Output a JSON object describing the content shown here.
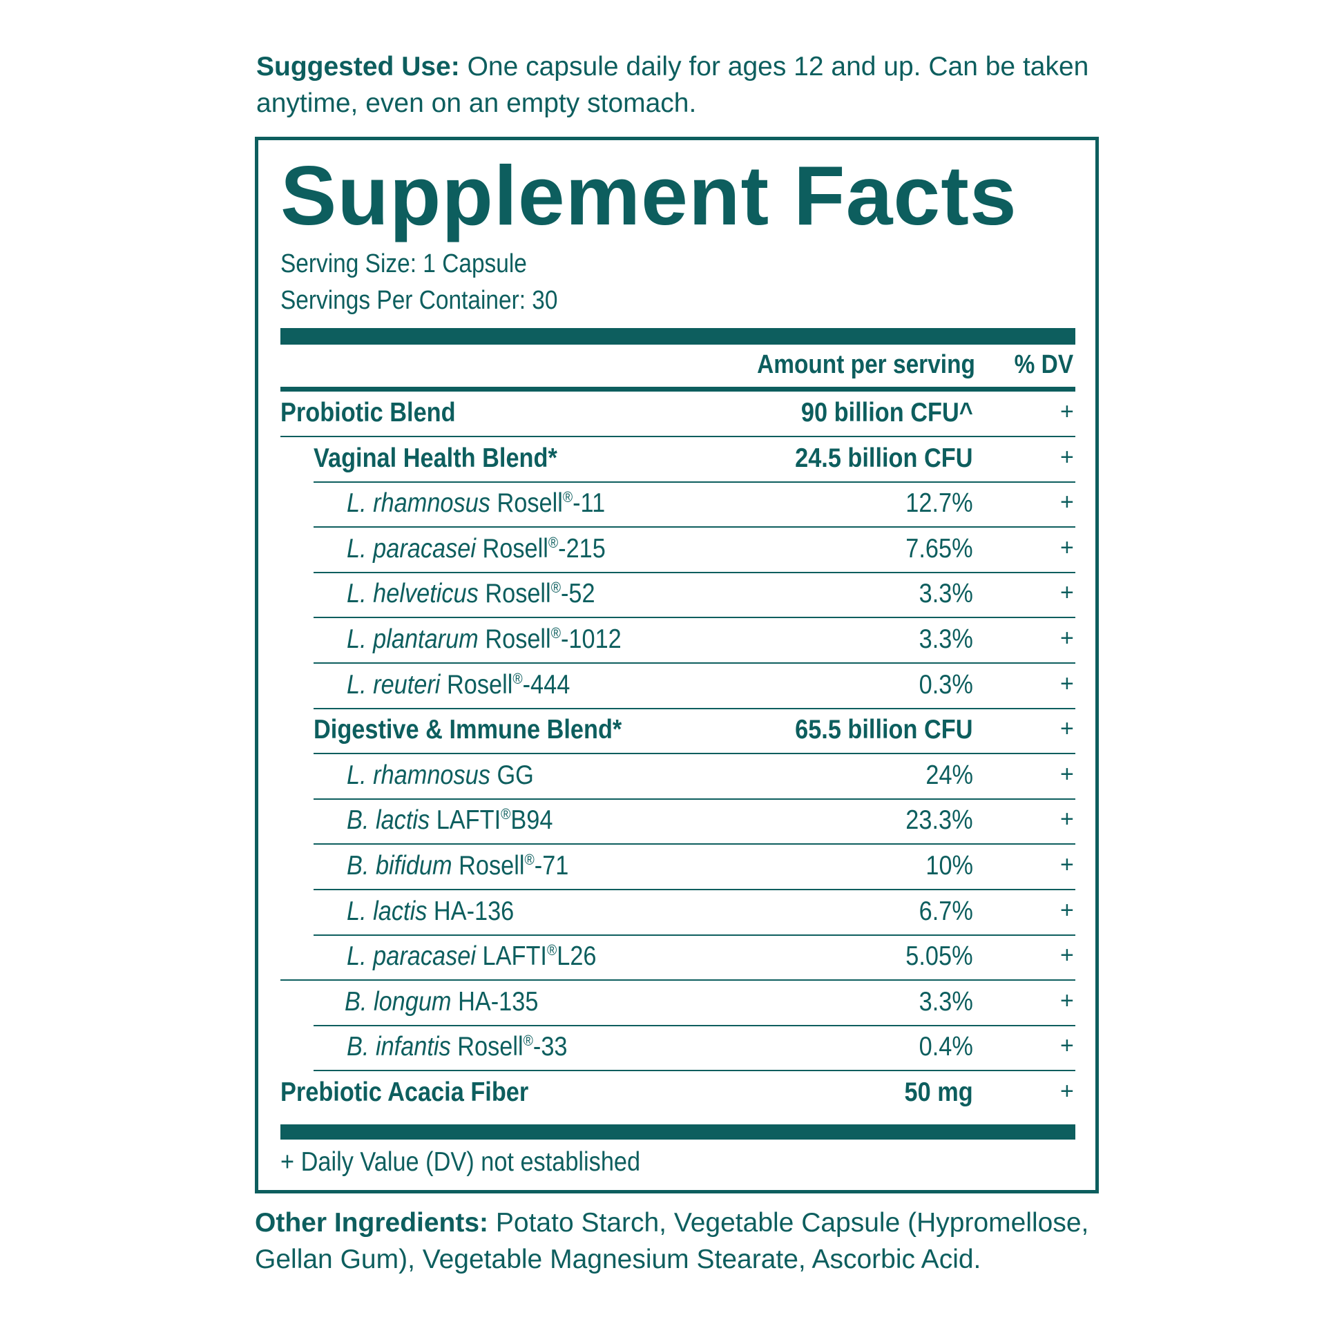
{
  "suggested_use": {
    "label": "Suggested Use:",
    "text": " One capsule daily for ages 12 and up. Can be taken anytime, even on an empty stomach."
  },
  "facts": {
    "title": "Supplement Facts",
    "serving_size": "Serving Size: 1 Capsule",
    "servings_per_container": "Servings Per Container: 30",
    "col_amount": "Amount per serving",
    "col_dv": "% DV",
    "rows": [
      {
        "italic": "",
        "name": "Probiotic Blend",
        "amount": "90 billion CFU^",
        "dv": "+"
      },
      {
        "italic": "",
        "name": "Vaginal Health Blend*",
        "amount": "24.5 billion CFU",
        "dv": "+"
      },
      {
        "italic": "L. rhamnosus",
        "name": " Rosell",
        "reg": "®",
        "suffix": "-11",
        "amount": "12.7%",
        "dv": "+"
      },
      {
        "italic": "L. paracasei",
        "name": " Rosell",
        "reg": "®",
        "suffix": "-215",
        "amount": "7.65%",
        "dv": "+"
      },
      {
        "italic": "L. helveticus",
        "name": " Rosell",
        "reg": "®",
        "suffix": "-52",
        "amount": "3.3%",
        "dv": "+"
      },
      {
        "italic": "L. plantarum",
        "name": " Rosell",
        "reg": "®",
        "suffix": "-1012",
        "amount": "3.3%",
        "dv": "+"
      },
      {
        "italic": "L. reuteri",
        "name": " Rosell",
        "reg": "®",
        "suffix": "-444",
        "amount": "0.3%",
        "dv": "+"
      },
      {
        "italic": "",
        "name": "Digestive & Immune Blend*",
        "amount": "65.5 billion CFU",
        "dv": "+"
      },
      {
        "italic": "L. rhamnosus",
        "name": " GG",
        "amount": "24%",
        "dv": "+"
      },
      {
        "italic": "B. lactis",
        "name": " LAFTI",
        "reg": "®",
        "suffix": "B94",
        "amount": "23.3%",
        "dv": "+"
      },
      {
        "italic": "B. bifidum",
        "name": " Rosell",
        "reg": "®",
        "suffix": "-71",
        "amount": "10%",
        "dv": "+"
      },
      {
        "italic": "L. lactis",
        "name": " HA-136",
        "amount": "6.7%",
        "dv": "+"
      },
      {
        "italic": "L. paracasei",
        "name": " LAFTI",
        "reg": "®",
        "suffix": "L26",
        "amount": "5.05%",
        "dv": "+"
      },
      {
        "italic": "B. longum",
        "name": " HA-135",
        "amount": "3.3%",
        "dv": "+"
      },
      {
        "italic": "B. infantis",
        "name": " Rosell",
        "reg": "®",
        "suffix": "-33",
        "amount": "0.4%",
        "dv": "+"
      },
      {
        "italic": "",
        "name": "Prebiotic Acacia Fiber",
        "amount": "50 mg",
        "dv": "+"
      }
    ],
    "footnote": "+ Daily Value (DV) not established"
  },
  "other_ingredients": {
    "label": "Other Ingredients:",
    "text": " Potato Starch, Vegetable Capsule (Hypromellose, Gellan Gum), Vegetable Magnesium Stearate, Ascorbic Acid."
  },
  "colors": {
    "teal": "#0d5e5e",
    "background": "#ffffff"
  }
}
